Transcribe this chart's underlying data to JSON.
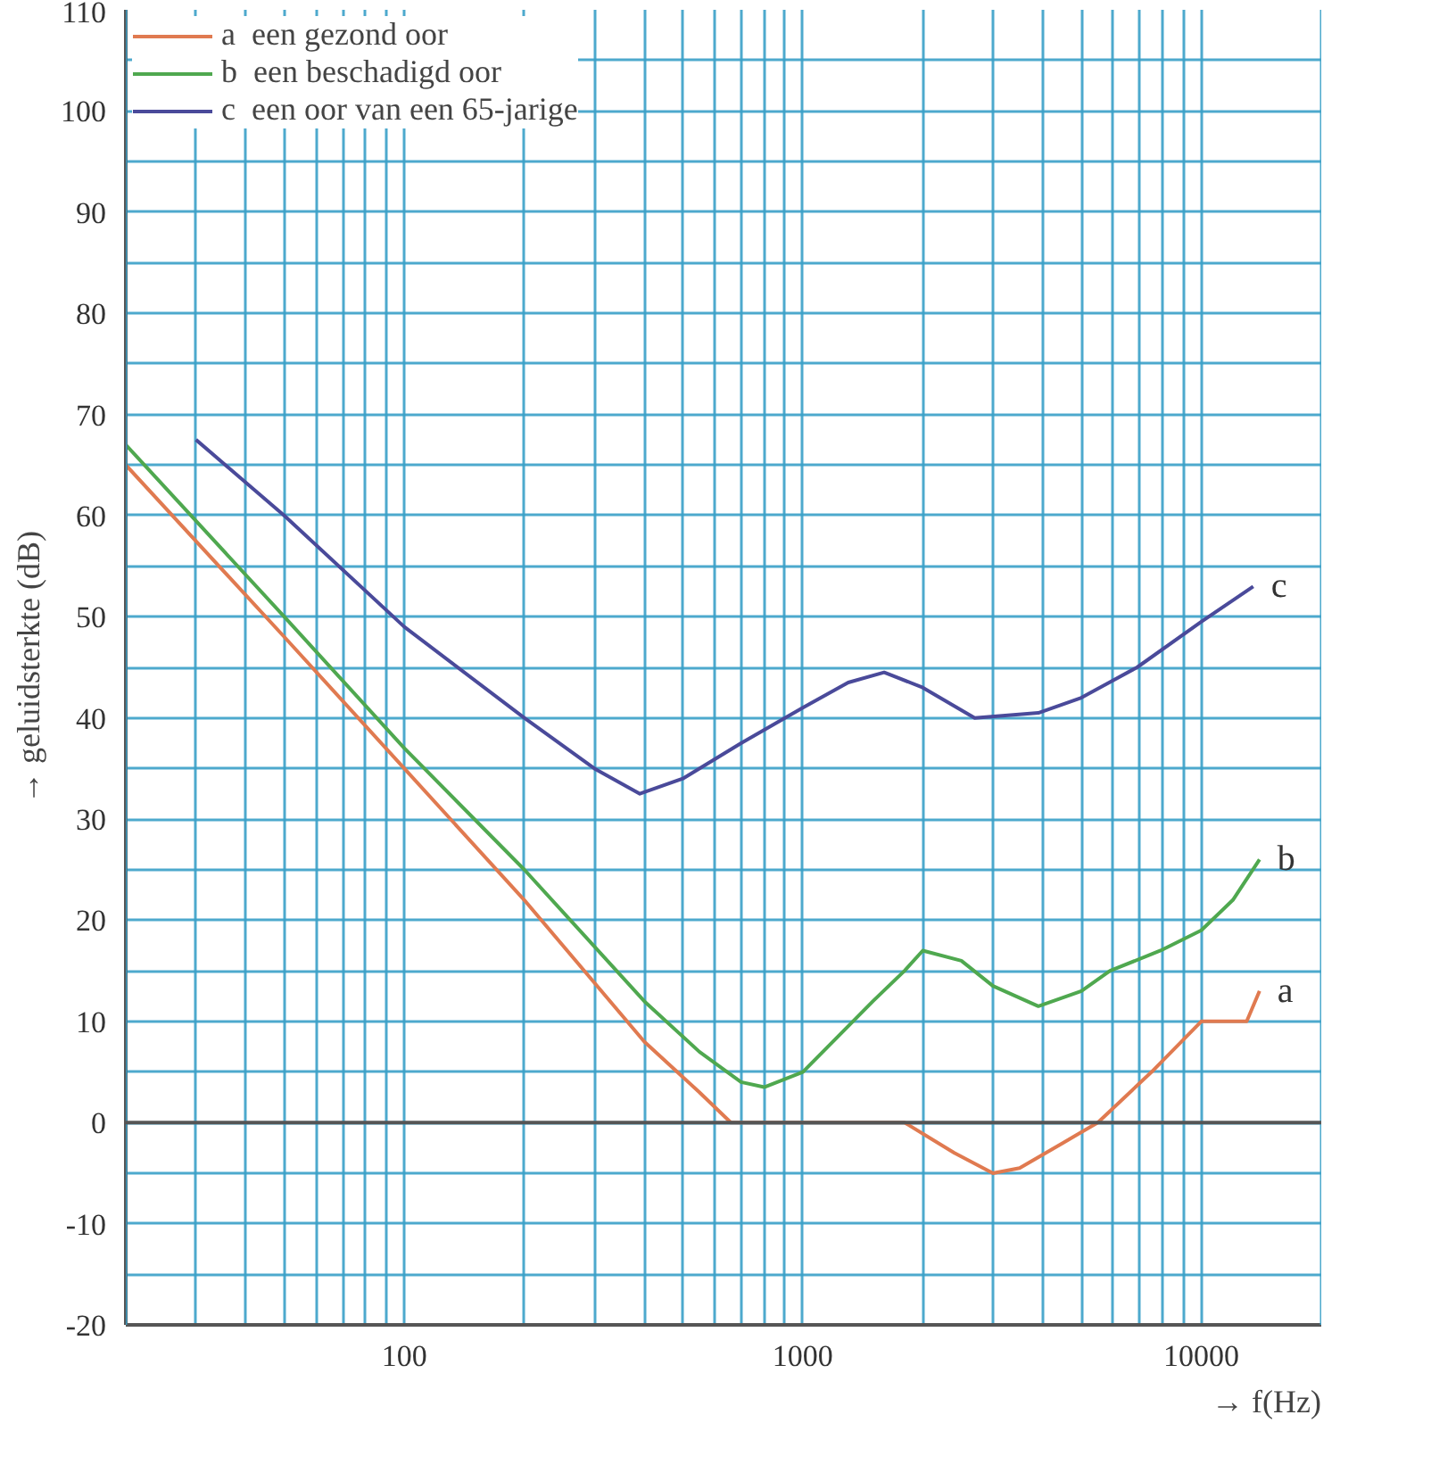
{
  "chart_data": {
    "type": "line",
    "xlabel": "→ f(Hz)",
    "ylabel": "→ geluidsterkte (dB)",
    "log": "x",
    "grid": true,
    "legend": "top left",
    "marker": "none",
    "line_style": "solid",
    "xlim": [
      20,
      20000
    ],
    "ylim": [
      -20,
      110
    ],
    "xticks": [
      {
        "value": 20,
        "label": null
      },
      {
        "value": 30,
        "label": null
      },
      {
        "value": 40,
        "label": null
      },
      {
        "value": 50,
        "label": null
      },
      {
        "value": 60,
        "label": null
      },
      {
        "value": 70,
        "label": null
      },
      {
        "value": 80,
        "label": null
      },
      {
        "value": 90,
        "label": null
      },
      100,
      {
        "value": 200,
        "label": null
      },
      {
        "value": 300,
        "label": null
      },
      {
        "value": 400,
        "label": null
      },
      {
        "value": 500,
        "label": null
      },
      {
        "value": 600,
        "label": null
      },
      {
        "value": 700,
        "label": null
      },
      {
        "value": 800,
        "label": null
      },
      {
        "value": 900,
        "label": null
      },
      1000,
      {
        "value": 2000,
        "label": null
      },
      {
        "value": 3000,
        "label": null
      },
      {
        "value": 4000,
        "label": null
      },
      {
        "value": 5000,
        "label": null
      },
      {
        "value": 6000,
        "label": null
      },
      {
        "value": 7000,
        "label": null
      },
      {
        "value": 8000,
        "label": null
      },
      {
        "value": 9000,
        "label": null
      },
      10000,
      {
        "value": 20000,
        "label": null
      }
    ],
    "yticks": [
      -20,
      {
        "value": -15,
        "label": null
      },
      -10,
      {
        "value": -5,
        "label": null
      },
      0,
      {
        "value": 5,
        "label": null
      },
      10,
      {
        "value": 15,
        "label": null
      },
      20,
      {
        "value": 25,
        "label": null
      },
      30,
      {
        "value": 35,
        "label": null
      },
      40,
      {
        "value": 45,
        "label": null
      },
      50,
      {
        "value": 55,
        "label": null
      },
      60,
      {
        "value": 65,
        "label": null
      },
      70,
      {
        "value": 75,
        "label": null
      },
      80,
      {
        "value": 85,
        "label": null
      },
      90,
      {
        "value": 95,
        "label": null
      },
      100,
      {
        "value": 105,
        "label": null
      },
      110
    ],
    "ref_lines": [
      {
        "axis": "y",
        "value": 0,
        "color": "#555555"
      }
    ],
    "series": [
      {
        "name": "a  een gezond oor",
        "color": "#e07a50",
        "x": [
          20,
          50,
          100,
          200,
          400,
          550,
          660,
          1000,
          1800,
          2400,
          3000,
          3500,
          4500,
          5500,
          7500,
          10000,
          13000,
          14000
        ],
        "values": [
          65,
          48,
          35,
          22,
          8,
          3,
          0,
          0,
          0,
          -3,
          -5,
          -4.5,
          -2,
          0,
          5,
          10,
          10,
          13
        ]
      },
      {
        "name": "b  een beschadigd oor",
        "color": "#4fa84f",
        "x": [
          20,
          50,
          100,
          200,
          400,
          550,
          700,
          800,
          1000,
          1500,
          1800,
          2000,
          2500,
          3000,
          3900,
          5000,
          5900,
          7900,
          10000,
          12000,
          14000
        ],
        "values": [
          67,
          50,
          37,
          25,
          12,
          7,
          4,
          3.5,
          5,
          12,
          15,
          17,
          16,
          13.5,
          11.5,
          13,
          15,
          17,
          19,
          22,
          26
        ]
      },
      {
        "name": "c  een oor van een 65-jarige",
        "color": "#4a4a9a",
        "x": [
          30,
          50,
          100,
          200,
          300,
          390,
          500,
          700,
          1000,
          1300,
          1600,
          2000,
          2700,
          3900,
          5000,
          6900,
          10000,
          13500
        ],
        "values": [
          67.5,
          60,
          49,
          40,
          35,
          32.5,
          34,
          37.5,
          41,
          43.5,
          44.5,
          43,
          40,
          40.5,
          42,
          45,
          49.5,
          53
        ]
      }
    ],
    "annotations": [
      "a",
      "b",
      "c"
    ]
  }
}
